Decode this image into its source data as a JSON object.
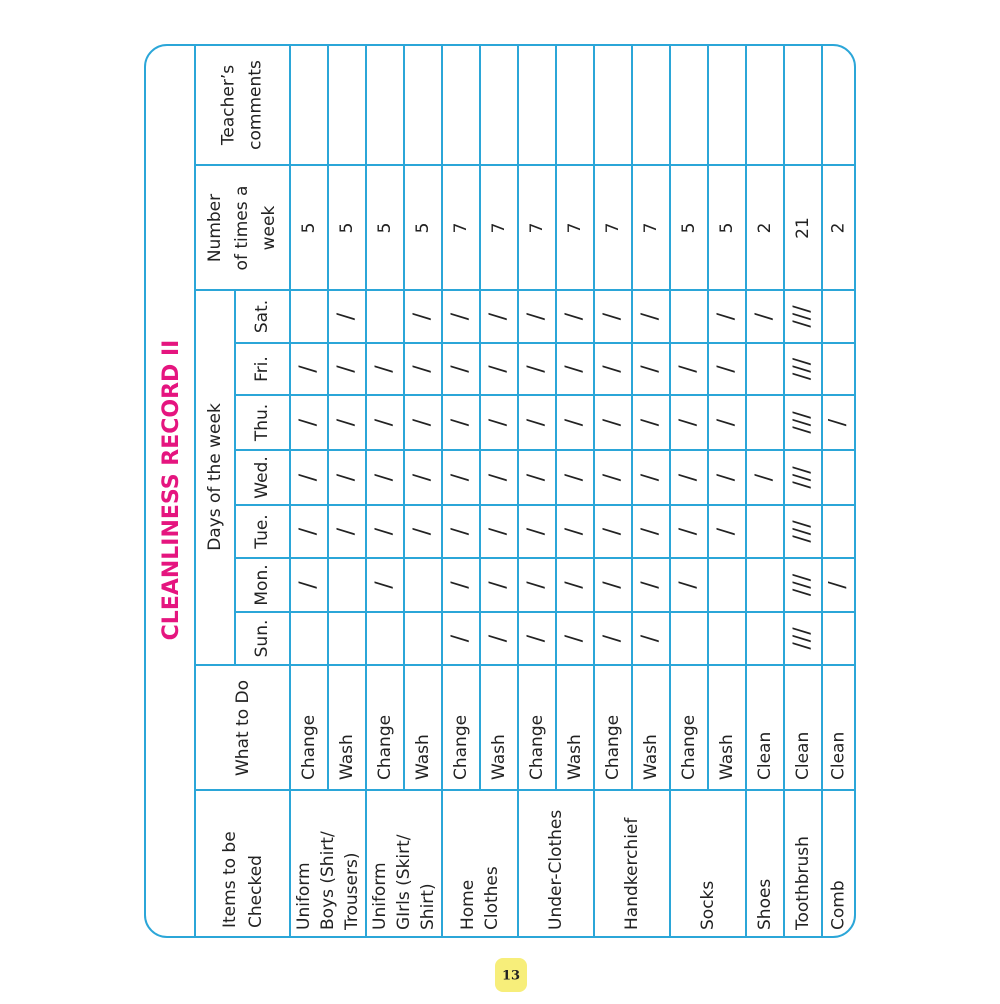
{
  "title": "CLEANLINESS RECORD II",
  "headers": {
    "items": [
      "Items to be",
      "Checked"
    ],
    "what": "What to Do",
    "days": "Days of the week",
    "day_names": [
      "Sun.",
      "Mon.",
      "Tue.",
      "Wed.",
      "Thu.",
      "Fri.",
      "Sat."
    ],
    "number": [
      "Number",
      "of times a",
      "week"
    ],
    "comments": [
      "Teacher’s",
      "comments"
    ]
  },
  "items": [
    {
      "label": [
        "Uniform",
        "Boys (Shirt/",
        "Trousers)"
      ],
      "rows": [
        {
          "action": "Change",
          "ticks": [
            null,
            "/",
            "/",
            "/",
            "/",
            "/",
            null
          ],
          "times": 5
        },
        {
          "action": "Wash",
          "ticks": [
            null,
            null,
            "/",
            "/",
            "/",
            "/",
            "/"
          ],
          "times": 5
        }
      ]
    },
    {
      "label": [
        "Uniform",
        "GIrls (Skirt/",
        "Shirt)"
      ],
      "rows": [
        {
          "action": "Change",
          "ticks": [
            null,
            "/",
            "/",
            "/",
            "/",
            "/",
            null
          ],
          "times": 5
        },
        {
          "action": "Wash",
          "ticks": [
            null,
            null,
            "/",
            "/",
            "/",
            "/",
            "/"
          ],
          "times": 5
        }
      ]
    },
    {
      "label": [
        "Home",
        "Clothes"
      ],
      "rows": [
        {
          "action": "Change",
          "ticks": [
            "/",
            "/",
            "/",
            "/",
            "/",
            "/",
            "/"
          ],
          "times": 7
        },
        {
          "action": "Wash",
          "ticks": [
            "/",
            "/",
            "/",
            "/",
            "/",
            "/",
            "/"
          ],
          "times": 7
        }
      ]
    },
    {
      "label": [
        "Under-Clothes"
      ],
      "rows": [
        {
          "action": "Change",
          "ticks": [
            "/",
            "/",
            "/",
            "/",
            "/",
            "/",
            "/"
          ],
          "times": 7
        },
        {
          "action": "Wash",
          "ticks": [
            "/",
            "/",
            "/",
            "/",
            "/",
            "/",
            "/"
          ],
          "times": 7
        }
      ]
    },
    {
      "label": [
        "Handkerchief"
      ],
      "rows": [
        {
          "action": "Change",
          "ticks": [
            "/",
            "/",
            "/",
            "/",
            "/",
            "/",
            "/"
          ],
          "times": 7
        },
        {
          "action": "Wash",
          "ticks": [
            "/",
            "/",
            "/",
            "/",
            "/",
            "/",
            "/"
          ],
          "times": 7
        }
      ]
    },
    {
      "label": [
        "Socks"
      ],
      "rows": [
        {
          "action": "Change",
          "ticks": [
            null,
            "/",
            "/",
            "/",
            "/",
            "/",
            null
          ],
          "times": 5
        },
        {
          "action": "Wash",
          "ticks": [
            null,
            null,
            "/",
            "/",
            "/",
            "/",
            "/"
          ],
          "times": 5
        }
      ]
    },
    {
      "label": [
        "Shoes"
      ],
      "rows": [
        {
          "action": "Clean",
          "ticks": [
            null,
            null,
            null,
            "/",
            null,
            null,
            "/"
          ],
          "times": 2
        }
      ]
    },
    {
      "label": [
        "Toothbrush"
      ],
      "rows": [
        {
          "action": "Clean",
          "ticks": [
            "///",
            "///",
            "///",
            "///",
            "///",
            "///",
            "///"
          ],
          "times": 21
        }
      ]
    },
    {
      "label": [
        "Comb"
      ],
      "rows": [
        {
          "action": "Clean",
          "ticks": [
            null,
            "/",
            null,
            null,
            "/",
            null,
            null
          ],
          "times": 2
        }
      ]
    }
  ],
  "page_number": "13"
}
